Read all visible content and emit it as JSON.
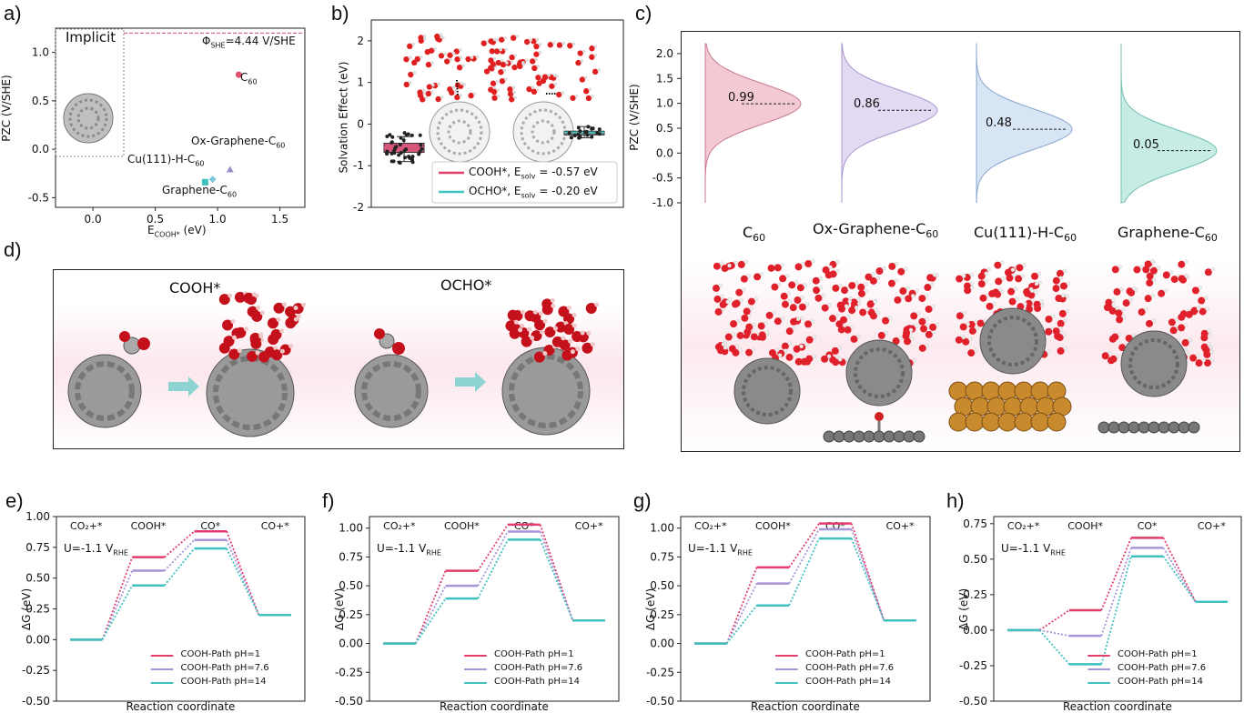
{
  "labels": {
    "a": "a)",
    "b": "b)",
    "c": "c)",
    "d": "d)",
    "e": "e)",
    "f": "f)",
    "g": "g)",
    "h": "h)"
  },
  "panel_a": {
    "implicit": "Implicit",
    "phi_main": "Φ",
    "phi_sub": "SHE",
    "phi_rest": "=4.44 V/SHE",
    "ylabel": "PZC (V/SHE)",
    "xlabel_main": "E",
    "xlabel_sub": "COOH*",
    "xlabel_rest": " (eV)",
    "points": [
      {
        "main": "C",
        "sub": "60",
        "pre": ""
      },
      {
        "main": "Ox-Graphene-C",
        "sub": "60",
        "pre": ""
      },
      {
        "main": "Cu(111)-H-C",
        "sub": "60",
        "pre": ""
      },
      {
        "main": "Graphene-C",
        "sub": "60",
        "pre": ""
      }
    ]
  },
  "panel_b": {
    "ylabel": "Solvation Effect (eV)",
    "legend": [
      {
        "main": "COOH*, E",
        "sub": "solv",
        "rest": " = -0.57 eV"
      },
      {
        "main": "OCHO*, E",
        "sub": "solv",
        "rest": " = -0.20 eV"
      }
    ]
  },
  "panel_c": {
    "ylabel": "PZC (V/SHE)",
    "systems": [
      {
        "main": "C",
        "sub": "60",
        "value": "0.99"
      },
      {
        "main": "Ox-Graphene-C",
        "sub": "60",
        "value": "0.86"
      },
      {
        "main": "Cu(111)-H-C",
        "sub": "60",
        "value": "0.48"
      },
      {
        "main": "Graphene-C",
        "sub": "60",
        "value": "0.05"
      }
    ]
  },
  "panel_d": {
    "left": "COOH*",
    "right": "OCHO*"
  },
  "energy_common": {
    "ylabel": "ΔG (eV)",
    "xlabel": "Reaction coordinate",
    "u_main": "U=-1.1 V",
    "u_sub": "RHE",
    "states": [
      "CO₂+*",
      "COOH*",
      "CO*",
      "CO+*"
    ],
    "legend": [
      "COOH-Path pH=1",
      "COOH-Path pH=7.6",
      "COOH-Path pH=14"
    ]
  },
  "colors": {
    "ph1": "#e23d6b",
    "ph76": "#a894d8",
    "ph14": "#3ec1bf",
    "dash": "#c0406a",
    "c60_pt": "#e0506a"
  },
  "chart_data": [
    {
      "type": "scatter",
      "title": "",
      "xlabel": "E_COOH* (eV)",
      "ylabel": "PZC (V/SHE)",
      "xlim": [
        -0.3,
        1.7
      ],
      "ylim": [
        -0.6,
        1.25
      ],
      "reference_line": {
        "y": 1.2,
        "label": "Φ_SHE=4.44 V/SHE"
      },
      "series": [
        {
          "name": "",
          "points": [
            {
              "label": "C60",
              "x": 1.17,
              "y": 0.77
            },
            {
              "label": "Ox-Graphene-C60",
              "x": 1.1,
              "y": -0.21
            },
            {
              "label": "Cu(111)-H-C60",
              "x": 0.96,
              "y": -0.31
            },
            {
              "label": "Graphene-C60",
              "x": 0.9,
              "y": -0.34
            }
          ]
        }
      ]
    },
    {
      "type": "box",
      "ylabel": "Solvation Effect (eV)",
      "ylim": [
        -2,
        2.5
      ],
      "series": [
        {
          "name": "COOH*",
          "mean": -0.57,
          "q1": -0.68,
          "q3": -0.46,
          "min": -0.9,
          "max": -0.3
        },
        {
          "name": "OCHO*",
          "mean": -0.2,
          "q1": -0.26,
          "q3": -0.17,
          "min": -0.33,
          "max": -0.06
        }
      ]
    },
    {
      "type": "distribution",
      "ylabel": "PZC (V/SHE)",
      "ylim": [
        -1.0,
        2.2
      ],
      "categories": [
        "C60",
        "Ox-Graphene-C60",
        "Cu(111)-H-C60",
        "Graphene-C60"
      ],
      "values": [
        0.99,
        0.86,
        0.48,
        0.05
      ]
    },
    {
      "type": "energy_profile",
      "panel": "e",
      "ylim": [
        -0.5,
        1.0
      ],
      "categories": [
        "CO2+*",
        "COOH*",
        "CO*",
        "CO+*"
      ],
      "series": [
        {
          "name": "COOH-Path pH=1",
          "values": [
            0,
            0.67,
            0.88,
            0.2
          ]
        },
        {
          "name": "COOH-Path pH=7.6",
          "values": [
            0,
            0.56,
            0.81,
            0.2
          ]
        },
        {
          "name": "COOH-Path pH=14",
          "values": [
            0,
            0.44,
            0.74,
            0.2
          ]
        }
      ]
    },
    {
      "type": "energy_profile",
      "panel": "f",
      "ylim": [
        -0.5,
        1.1
      ],
      "categories": [
        "CO2+*",
        "COOH*",
        "CO*",
        "CO+*"
      ],
      "series": [
        {
          "name": "COOH-Path pH=1",
          "values": [
            0,
            0.63,
            1.03,
            0.2
          ]
        },
        {
          "name": "COOH-Path pH=7.6",
          "values": [
            0,
            0.5,
            0.97,
            0.2
          ]
        },
        {
          "name": "COOH-Path pH=14",
          "values": [
            0,
            0.39,
            0.9,
            0.2
          ]
        }
      ]
    },
    {
      "type": "energy_profile",
      "panel": "g",
      "ylim": [
        -0.5,
        1.1
      ],
      "categories": [
        "CO2+*",
        "COOH*",
        "CO*",
        "CO+*"
      ],
      "series": [
        {
          "name": "COOH-Path pH=1",
          "values": [
            0,
            0.66,
            1.04,
            0.2
          ]
        },
        {
          "name": "COOH-Path pH=7.6",
          "values": [
            0,
            0.52,
            0.99,
            0.2
          ]
        },
        {
          "name": "COOH-Path pH=14",
          "values": [
            0,
            0.33,
            0.91,
            0.2
          ]
        }
      ]
    },
    {
      "type": "energy_profile",
      "panel": "h",
      "ylim": [
        -0.5,
        0.8
      ],
      "categories": [
        "CO2+*",
        "COOH*",
        "CO*",
        "CO+*"
      ],
      "series": [
        {
          "name": "COOH-Path pH=1",
          "values": [
            0,
            0.14,
            0.65,
            0.2
          ]
        },
        {
          "name": "COOH-Path pH=7.6",
          "values": [
            0,
            -0.04,
            0.58,
            0.2
          ]
        },
        {
          "name": "COOH-Path pH=14",
          "values": [
            0,
            -0.24,
            0.52,
            0.2
          ]
        }
      ]
    }
  ]
}
